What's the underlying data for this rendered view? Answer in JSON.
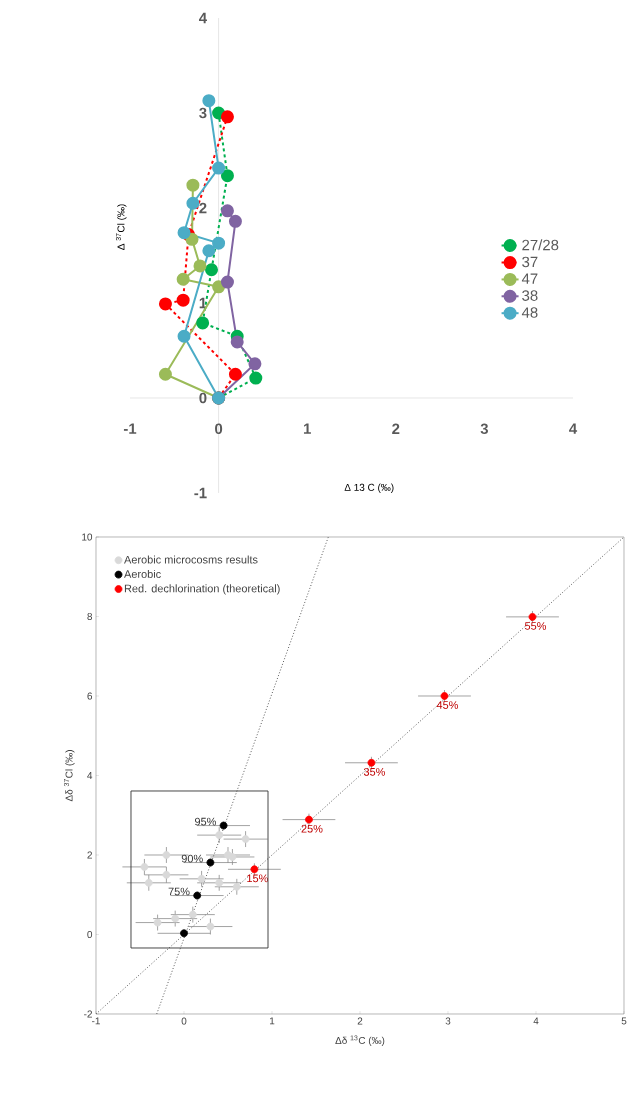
{
  "chart_data": [
    {
      "type": "line",
      "xlabel": "Δ 13 C  (‰)",
      "ylabel": "Δ $^{37}$Cl  (‰)",
      "xlim": [
        -1,
        4
      ],
      "ylim": [
        -1,
        4
      ],
      "xticks": [
        -1,
        0,
        1,
        2,
        3,
        4
      ],
      "yticks": [
        -1,
        0,
        1,
        2,
        3,
        4
      ],
      "legend": "right",
      "marker": "circle",
      "series": [
        {
          "name": "27/28",
          "color": "#00b050",
          "line_style": "dashed",
          "x": [
            0,
            0.42,
            0.21,
            -0.18,
            -0.08,
            0.1,
            0
          ],
          "values": [
            0,
            0.21,
            0.65,
            0.79,
            1.35,
            2.34,
            3.0
          ]
        },
        {
          "name": "37",
          "color": "#ff0000",
          "line_style": "dashed",
          "x": [
            0,
            0.19,
            -0.6,
            -0.4,
            -0.34,
            0.1
          ],
          "values": [
            0,
            0.25,
            0.99,
            1.03,
            1.72,
            2.96
          ]
        },
        {
          "name": "47",
          "color": "#9bbb59",
          "line_style": "solid",
          "x": [
            0,
            -0.6,
            0,
            -0.4,
            -0.21,
            -0.3,
            -0.29
          ],
          "values": [
            0,
            0.25,
            1.17,
            1.25,
            1.39,
            1.67,
            2.24
          ]
        },
        {
          "name": "38",
          "color": "#8064a2",
          "line_style": "solid",
          "x": [
            0,
            0.41,
            0.21,
            0.1,
            0.19,
            0.1
          ],
          "values": [
            0,
            0.36,
            0.59,
            1.22,
            1.86,
            1.97
          ]
        },
        {
          "name": "48",
          "color": "#4bacc6",
          "line_style": "solid",
          "x": [
            0,
            -0.39,
            -0.11,
            0,
            -0.39,
            -0.29,
            0,
            -0.11
          ],
          "values": [
            0,
            0.65,
            1.55,
            1.63,
            1.74,
            2.05,
            2.42,
            3.13
          ]
        }
      ]
    },
    {
      "type": "scatter",
      "xlabel": "Δδ $^{13}$C (‰)",
      "ylabel": "Δδ $^{37}$Cl (‰)",
      "xlim": [
        -1,
        5
      ],
      "ylim": [
        -2,
        10
      ],
      "xticks": [
        -1,
        0,
        1,
        2,
        3,
        4,
        5
      ],
      "yticks": [
        -2,
        0,
        2,
        4,
        6,
        8,
        10
      ],
      "legend": "top left",
      "marker": "circle",
      "series": [
        {
          "name": "Aerobic microcosms results",
          "color": "#d9d9d9",
          "x": [
            -0.3,
            -0.1,
            0.1,
            0.3,
            -0.4,
            -0.2,
            0.4,
            0.2,
            0.6,
            0.5,
            0.7,
            0.4,
            -0.2,
            0.55,
            -0.45
          ],
          "values": [
            0.3,
            0.4,
            0.5,
            0.2,
            1.3,
            1.5,
            1.3,
            1.4,
            1.2,
            2.0,
            2.4,
            2.5,
            2.0,
            1.95,
            1.7
          ],
          "xerrors": [
            0.25,
            0.25,
            0.25,
            0.25,
            0.25,
            0.25,
            0.25,
            0.25,
            0.25,
            0.25,
            0.25,
            0.25,
            0.25,
            0.25,
            0.25
          ],
          "errors": [
            0.2,
            0.2,
            0.2,
            0.2,
            0.2,
            0.2,
            0.2,
            0.2,
            0.2,
            0.2,
            0.2,
            0.2,
            0.2,
            0.2,
            0.2
          ]
        },
        {
          "name": "Aerobic",
          "color": "#000000",
          "x": [
            0,
            0.15,
            0.3,
            0.45
          ],
          "values": [
            0.03,
            0.98,
            1.81,
            2.74
          ],
          "xerrors": [
            0.3,
            0.3,
            0.3,
            0.3
          ],
          "errors": [
            0.1,
            0.1,
            0.1,
            0.1
          ]
        },
        {
          "name": "Red. dechlorination (theoretical)",
          "color": "#ff0000",
          "x": [
            0.8,
            1.42,
            2.13,
            2.96,
            3.96
          ],
          "values": [
            1.64,
            2.89,
            4.32,
            6.0,
            7.99
          ],
          "xerrors": [
            0.3,
            0.3,
            0.3,
            0.3,
            0.3
          ],
          "errors": [
            0.15,
            0.15,
            0.15,
            0.15,
            0.15
          ]
        },
        {
          "type": "line",
          "color": "#595959",
          "line_style": "dotted",
          "marker": "none",
          "x": [
            -1,
            5
          ],
          "values": [
            -2,
            10
          ]
        },
        {
          "type": "line",
          "color": "#595959",
          "line_style": "dotted",
          "marker": "none",
          "x": [
            -0.31,
            1.64
          ],
          "values": [
            -2,
            10
          ]
        }
      ],
      "annotations": [
        {
          "text": "75%",
          "x": 0.15,
          "y": 0.98
        },
        {
          "text": "90%",
          "x": 0.3,
          "y": 1.81
        },
        {
          "text": "95%",
          "x": 0.45,
          "y": 2.74
        },
        {
          "text": "15%",
          "x": 0.8,
          "y": 1.64
        },
        {
          "text": "25%",
          "x": 1.42,
          "y": 2.89
        },
        {
          "text": "35%",
          "x": 2.13,
          "y": 4.32
        },
        {
          "text": "45%",
          "x": 2.96,
          "y": 6.0
        },
        {
          "text": "55%",
          "x": 3.96,
          "y": 7.99
        }
      ]
    }
  ]
}
